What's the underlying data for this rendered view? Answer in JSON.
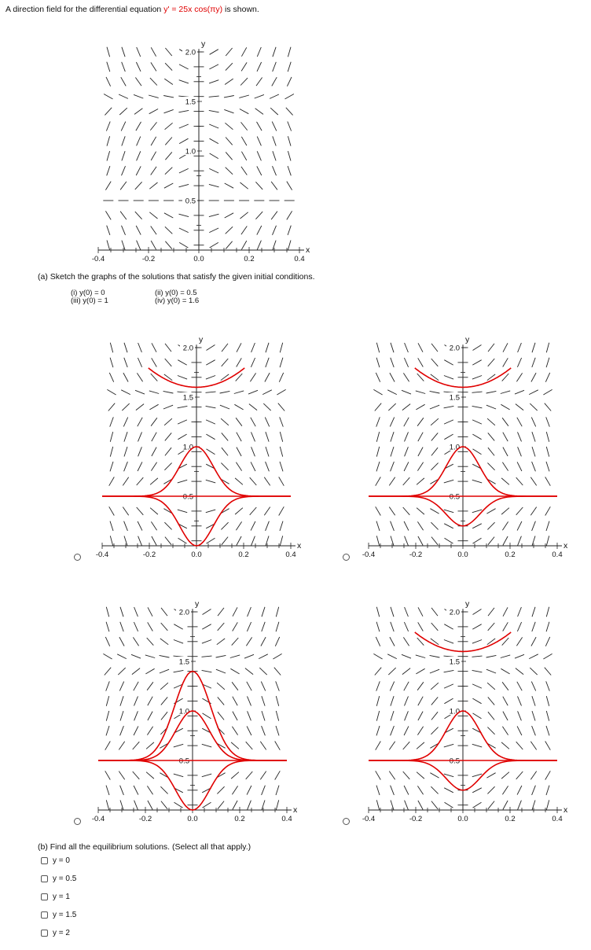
{
  "question": {
    "intro_prefix": "A direction field for the differential equation ",
    "equation": "y' = 25x cos(πy)",
    "intro_suffix": " is shown."
  },
  "colors": {
    "field": "#222222",
    "solution": "#e00000",
    "axis": "#222222"
  },
  "axis_labels": {
    "x": "x",
    "y": "y",
    "x_ticks": [
      "-0.4",
      "-0.2",
      "0.0",
      "0.2",
      "0.4"
    ],
    "y_ticks": [
      "0.5",
      "1.0",
      "1.5",
      "2.0"
    ]
  },
  "part_a": {
    "prompt": "(a) Sketch the graphs of the solutions that satisfy the given initial conditions.",
    "conditions": [
      "(i) y(0) = 0",
      "(ii) y(0) = 0.5",
      "(iii) y(0) = 1",
      "(iv) y(0) = 1.6"
    ]
  },
  "part_b": {
    "prompt": "(b) Find all the equilibrium solutions. (Select all that apply.)",
    "options": [
      "y = 0",
      "y = 0.5",
      "y = 1",
      "y = 1.5",
      "y = 2"
    ]
  },
  "plots": [
    {
      "id": "main",
      "curves": []
    },
    {
      "id": "choice-1",
      "curves": [
        "upper-from-1.6",
        "bump-from-1.0",
        "flat-0.5",
        "dip-from-0"
      ]
    },
    {
      "id": "choice-2",
      "curves": [
        "upper-from-1.6",
        "bump-from-1.0",
        "dip-to-0.2",
        "flat-0.5"
      ]
    },
    {
      "id": "choice-3",
      "curves": [
        "high-bump-from-1.6",
        "bump-from-1.0",
        "flat-0.5",
        "dip-from-0"
      ]
    },
    {
      "id": "choice-4",
      "curves": [
        "upper-from-1.6",
        "bump-from-1.0",
        "flat-0.5",
        "dip-to-0.2"
      ]
    }
  ]
}
